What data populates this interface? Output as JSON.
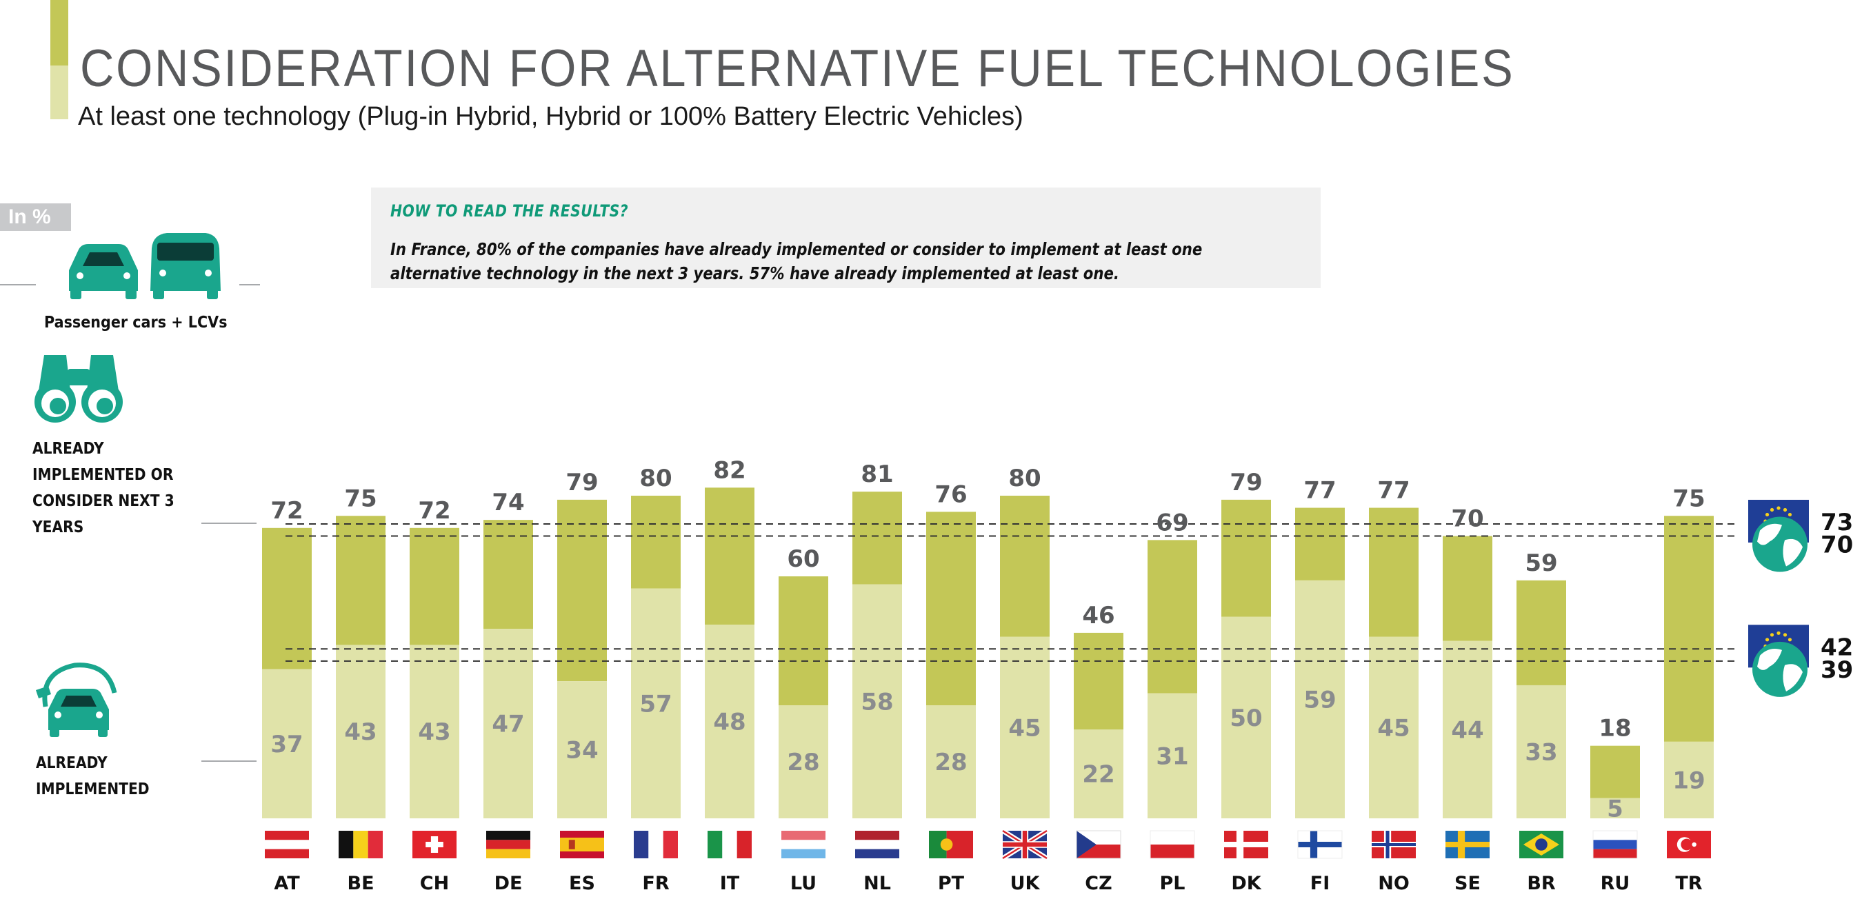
{
  "header": {
    "title": "CONSIDERATION FOR ALTERNATIVE FUEL TECHNOLOGIES",
    "subtitle": "At least one technology (Plug-in Hybrid, Hybrid or 100% Battery Electric Vehicles)"
  },
  "unit": "In %",
  "how_to_read": {
    "title": "HOW TO READ THE RESULTS?",
    "text": "In France, 80% of the companies have already implemented or consider to implement at least one alternative technology in the next 3 years. 57% have already implemented at least one."
  },
  "legend": {
    "vehicles_label": "Passenger cars + LCVs",
    "consider_label": "ALREADY IMPLEMENTED OR CONSIDER NEXT 3 YEARS",
    "implemented_label": "ALREADY IMPLEMENTED"
  },
  "icons": {
    "vehicles": "car-and-van-icon",
    "consider": "binoculars-icon",
    "implemented": "electric-car-plug-icon",
    "eu": "eu-flag-icon",
    "world": "globe-icon"
  },
  "colors": {
    "consider": "#c3c757",
    "implemented": "#e0e3a9",
    "implemented_label": "#8a8c8e",
    "total_label": "#58595b",
    "icon_teal": "#1aa68d",
    "eu_blue": "#1f3e96"
  },
  "chart_data": {
    "type": "bar",
    "categories": [
      "AT",
      "BE",
      "CH",
      "DE",
      "ES",
      "FR",
      "IT",
      "LU",
      "NL",
      "PT",
      "UK",
      "CZ",
      "PL",
      "DK",
      "FI",
      "NO",
      "SE",
      "BR",
      "RU",
      "TR"
    ],
    "series": [
      {
        "name": "ALREADY IMPLEMENTED OR CONSIDER NEXT 3 YEARS",
        "values": [
          72,
          75,
          72,
          74,
          79,
          80,
          82,
          60,
          81,
          76,
          80,
          46,
          69,
          79,
          77,
          77,
          70,
          59,
          18,
          75
        ]
      },
      {
        "name": "ALREADY IMPLEMENTED",
        "values": [
          37,
          43,
          43,
          47,
          34,
          57,
          48,
          28,
          58,
          28,
          45,
          22,
          31,
          50,
          59,
          45,
          44,
          33,
          5,
          19
        ]
      }
    ],
    "reference_lines": [
      {
        "group": "ALREADY IMPLEMENTED OR CONSIDER NEXT 3 YEARS",
        "eu": 73,
        "world": 70
      },
      {
        "group": "ALREADY IMPLEMENTED",
        "eu": 42,
        "world": 39
      }
    ],
    "ylim": [
      0,
      100
    ],
    "grid": false,
    "legend_position": "left"
  }
}
